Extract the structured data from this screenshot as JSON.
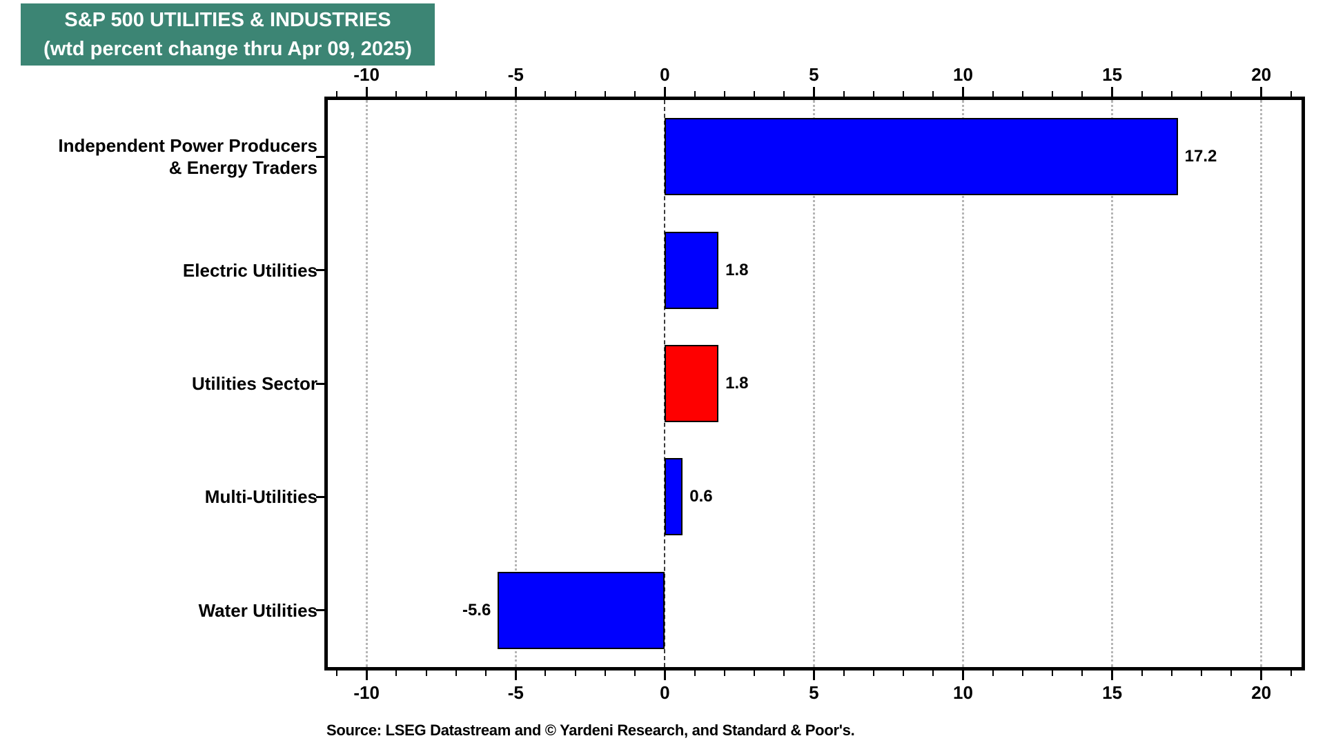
{
  "title": {
    "line1": "S&P 500 UTILITIES & INDUSTRIES",
    "line2": "(wtd percent change thru Apr 09, 2025)"
  },
  "source": "Source: LSEG Datastream and © Yardeni Research, and Standard & Poor's.",
  "colors": {
    "title_bg": "#3c8574",
    "title_text": "#ffffff",
    "bar_blue": "#0000fe",
    "bar_red": "#fe0000",
    "bar_border": "#000000",
    "grid": "#b5b5b5",
    "zero_line": "#3a3a3a",
    "frame": "#000000"
  },
  "chart_data": {
    "type": "bar",
    "orientation": "horizontal",
    "title": "S&P 500 UTILITIES & INDUSTRIES",
    "subtitle": "(wtd percent change thru Apr 09, 2025)",
    "categories": [
      "Independent Power Producers\n& Energy Traders",
      "Electric Utilities",
      "Utilities Sector",
      "Multi-Utilities",
      "Water Utilities"
    ],
    "values": [
      17.2,
      1.8,
      1.8,
      0.6,
      -5.6
    ],
    "value_labels": [
      "17.2",
      "1.8",
      "1.8",
      "0.6",
      "-5.6"
    ],
    "bar_colors": [
      "#0000fe",
      "#0000fe",
      "#fe0000",
      "#0000fe",
      "#0000fe"
    ],
    "xlim": [
      -11.3,
      21.35
    ],
    "xticks": [
      -10,
      -5,
      0,
      5,
      10,
      15,
      20
    ],
    "xtick_labels": [
      "-10",
      "-5",
      "0",
      "5",
      "10",
      "15",
      "20"
    ],
    "minor_tick_step": 1,
    "grid": "dotted vertical gridlines at major ticks, dashed line at zero",
    "legend": "none",
    "xlabel": "",
    "ylabel": ""
  }
}
